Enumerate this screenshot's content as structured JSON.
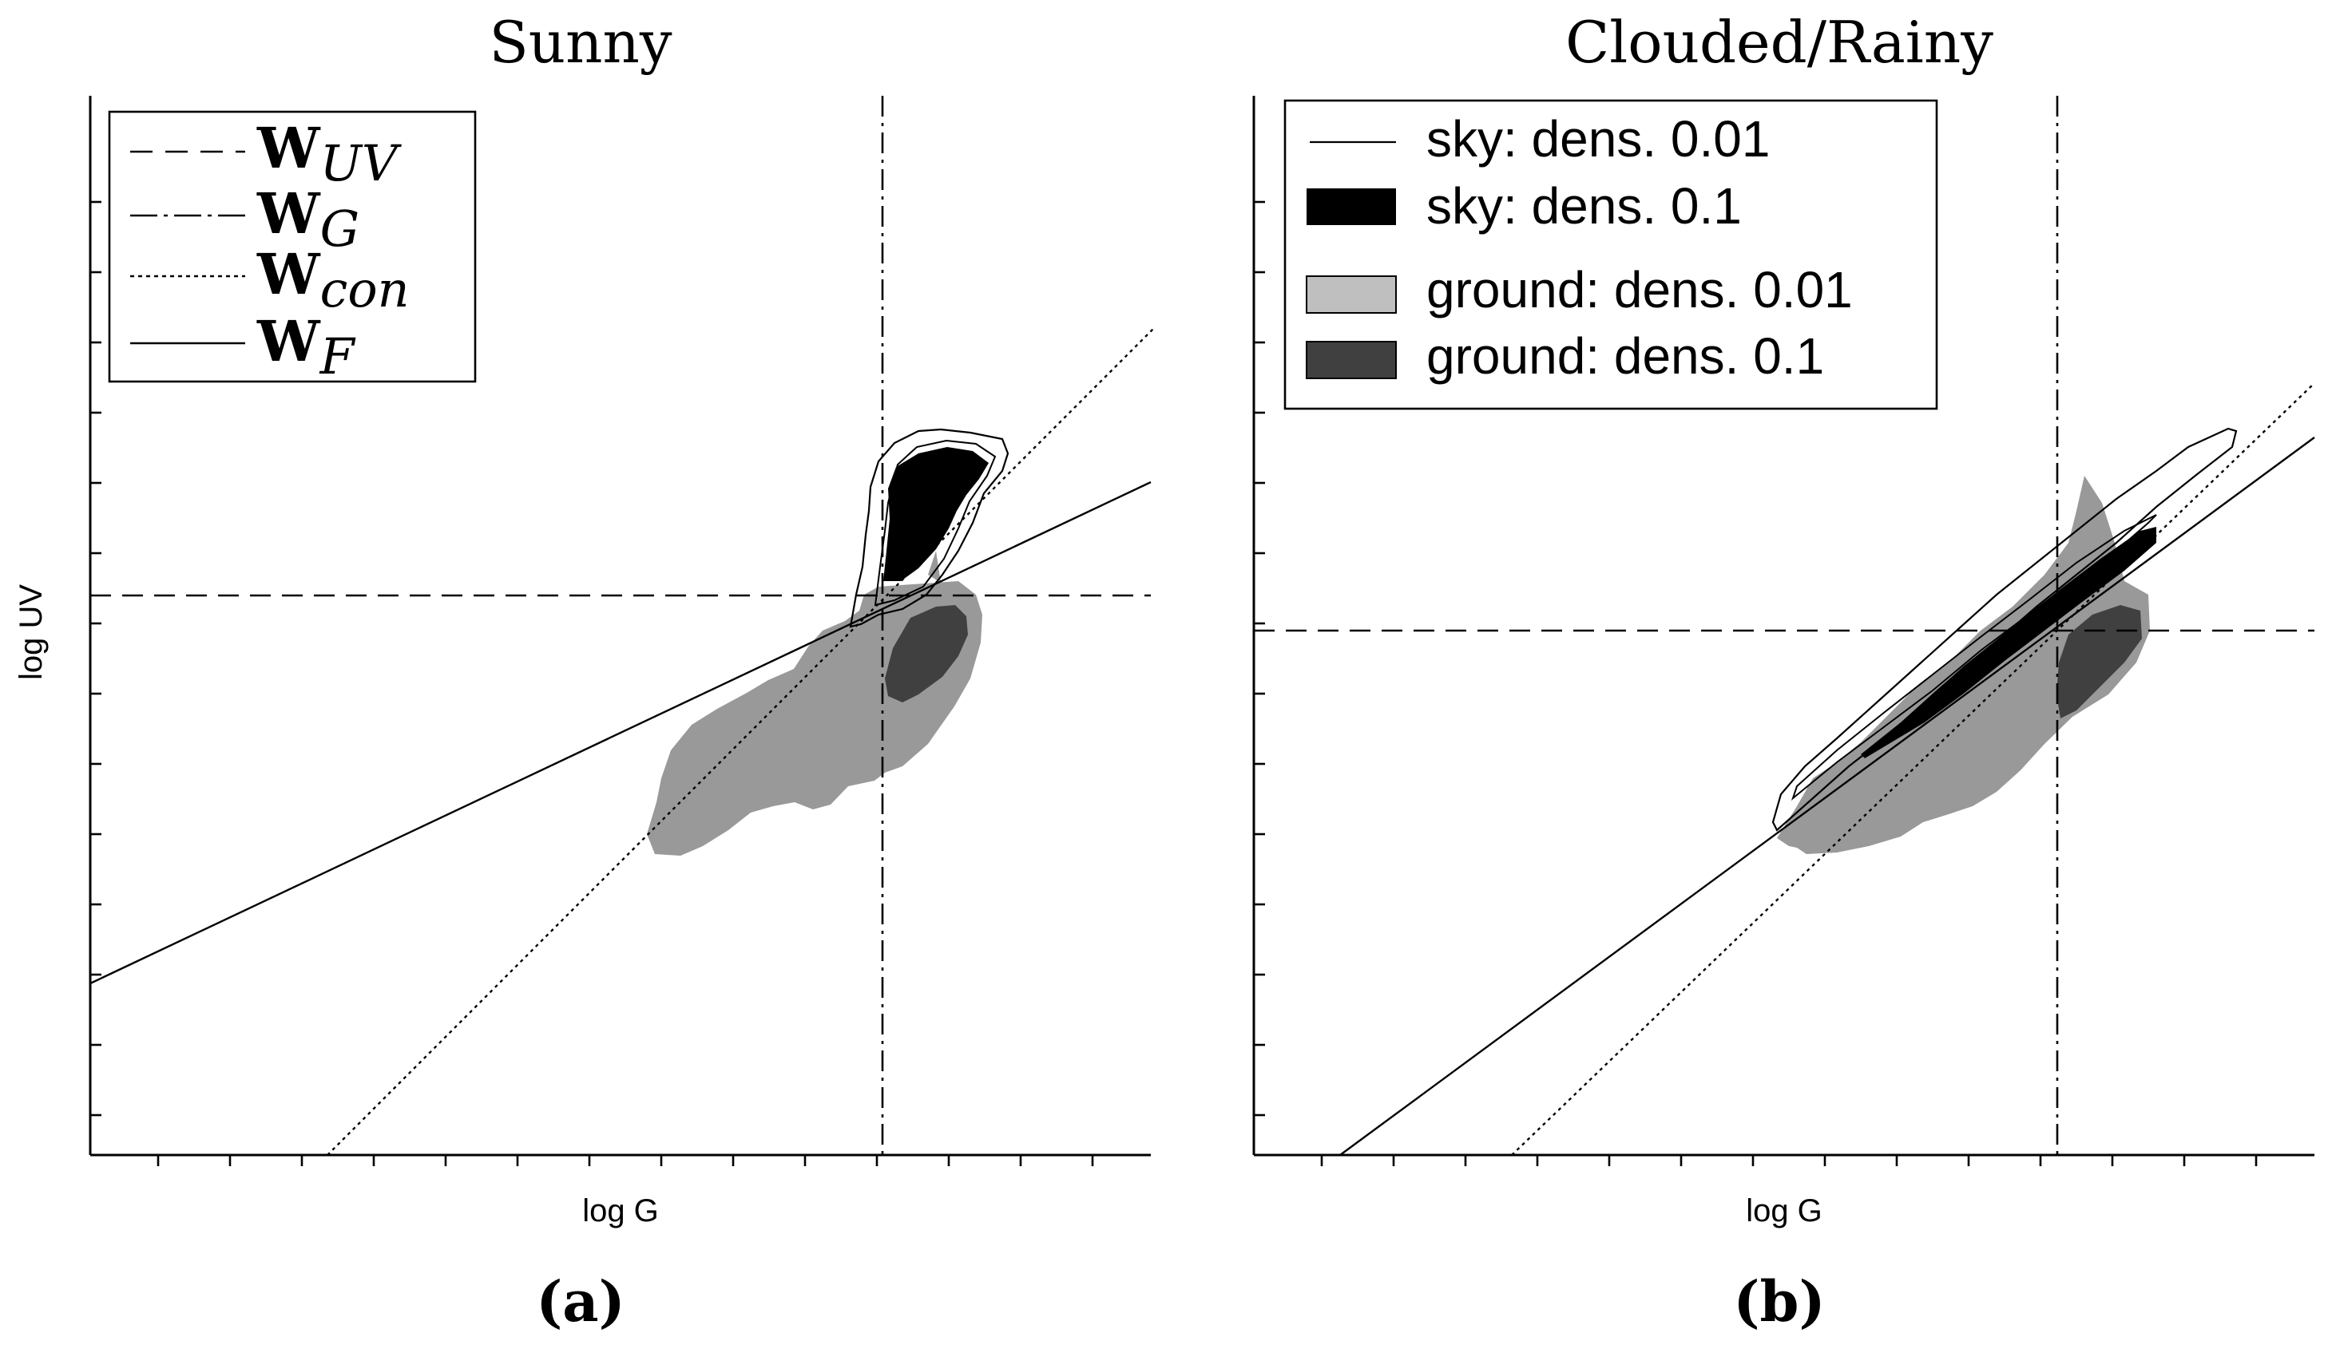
{
  "figure": {
    "panel_a_label": "(a)",
    "panel_b_label": "(b)"
  },
  "chart_data": [
    {
      "type": "scatter",
      "title": "Sunny",
      "xlabel": "log G",
      "ylabel": "log UV",
      "tick_labels_shown": false,
      "grid": false,
      "legend_position": "top-left",
      "legend": [
        {
          "base": "W",
          "sub": "UV",
          "style": "dashed"
        },
        {
          "base": "W",
          "sub": "G",
          "style": "dash-dot"
        },
        {
          "base": "W",
          "sub": "con",
          "style": "dotted"
        },
        {
          "base": "W",
          "sub": "F",
          "style": "solid"
        }
      ]
    },
    {
      "type": "scatter",
      "title": "Clouded/Rainy",
      "xlabel": "log G",
      "ylabel": "",
      "tick_labels_shown": false,
      "grid": false,
      "legend_position": "top-left",
      "legend": [
        {
          "label": "sky: dens. 0.01",
          "style": "contour-line"
        },
        {
          "label": "sky: dens. 0.1",
          "style": "black-fill",
          "color": "#000000"
        },
        {
          "label": "ground: dens. 0.01",
          "style": "light-gray-fill",
          "color": "#bfbfbf"
        },
        {
          "label": "ground: dens. 0.1",
          "style": "dark-gray-fill",
          "color": "#404040"
        }
      ]
    }
  ],
  "colors": {
    "ground_low": "#999999",
    "ground_high": "#404040",
    "sky_high": "#000000",
    "legend_light": "#bfbfbf"
  }
}
